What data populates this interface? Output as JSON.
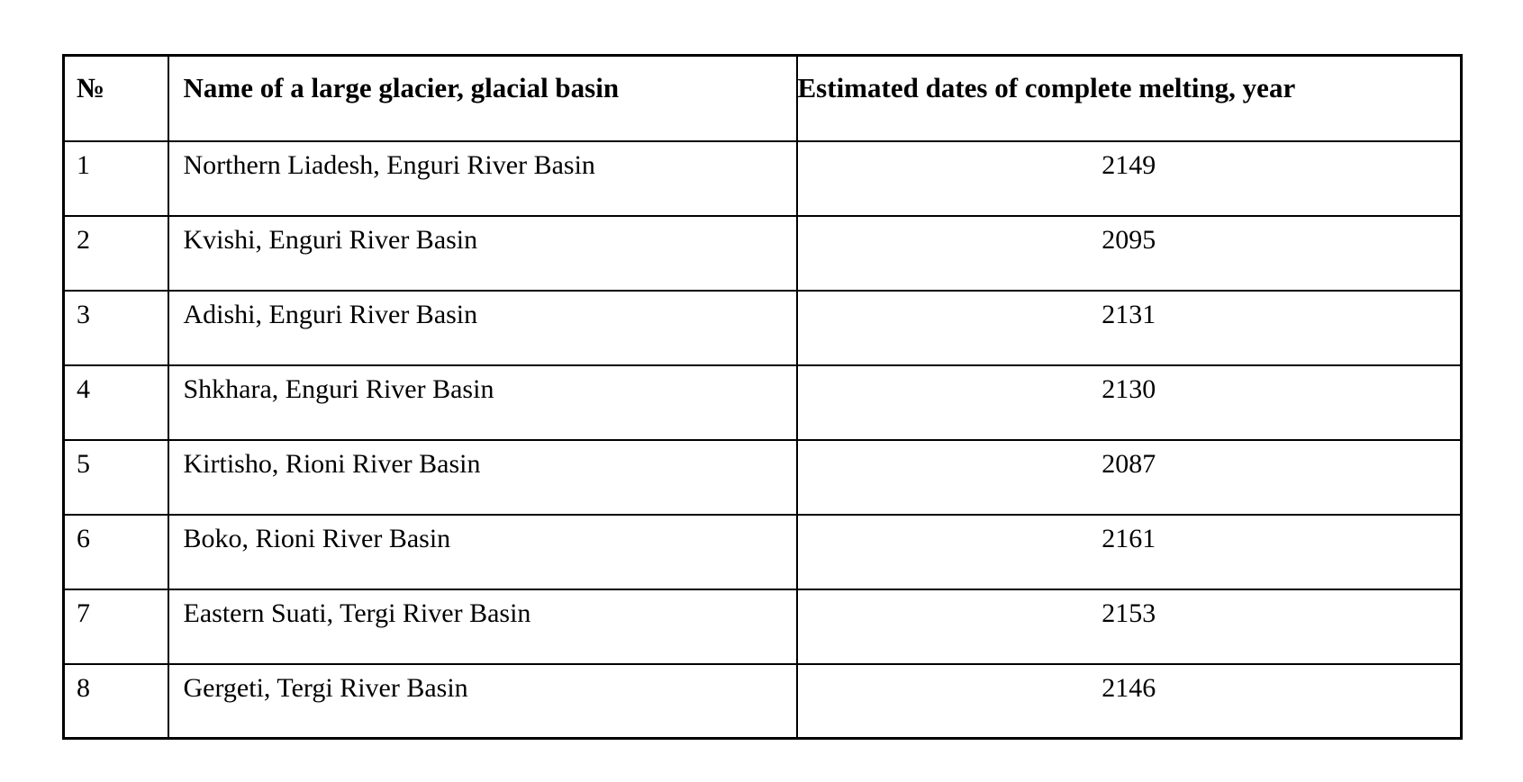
{
  "table": {
    "headers": {
      "number": "№",
      "name": "Name of a large glacier, glacial basin",
      "year": "Estimated dates of complete melting, year"
    },
    "rows": [
      {
        "num": "1",
        "name": "Northern Liadesh, Enguri River Basin",
        "year": "2149"
      },
      {
        "num": "2",
        "name": "Kvishi, Enguri River Basin",
        "year": "2095"
      },
      {
        "num": "3",
        "name": "Adishi, Enguri River Basin",
        "year": "2131"
      },
      {
        "num": "4",
        "name": "Shkhara, Enguri River Basin",
        "year": "2130"
      },
      {
        "num": "5",
        "name": "Kirtisho, Rioni River Basin",
        "year": "2087"
      },
      {
        "num": "6",
        "name": "Boko, Rioni River Basin",
        "year": "2161"
      },
      {
        "num": "7",
        "name": "Eastern Suati, Tergi River Basin",
        "year": "2153"
      },
      {
        "num": "8",
        "name": "Gergeti, Tergi River Basin",
        "year": "2146"
      }
    ],
    "colors": {
      "border": "#000000",
      "background": "#ffffff",
      "text": "#000000"
    }
  }
}
